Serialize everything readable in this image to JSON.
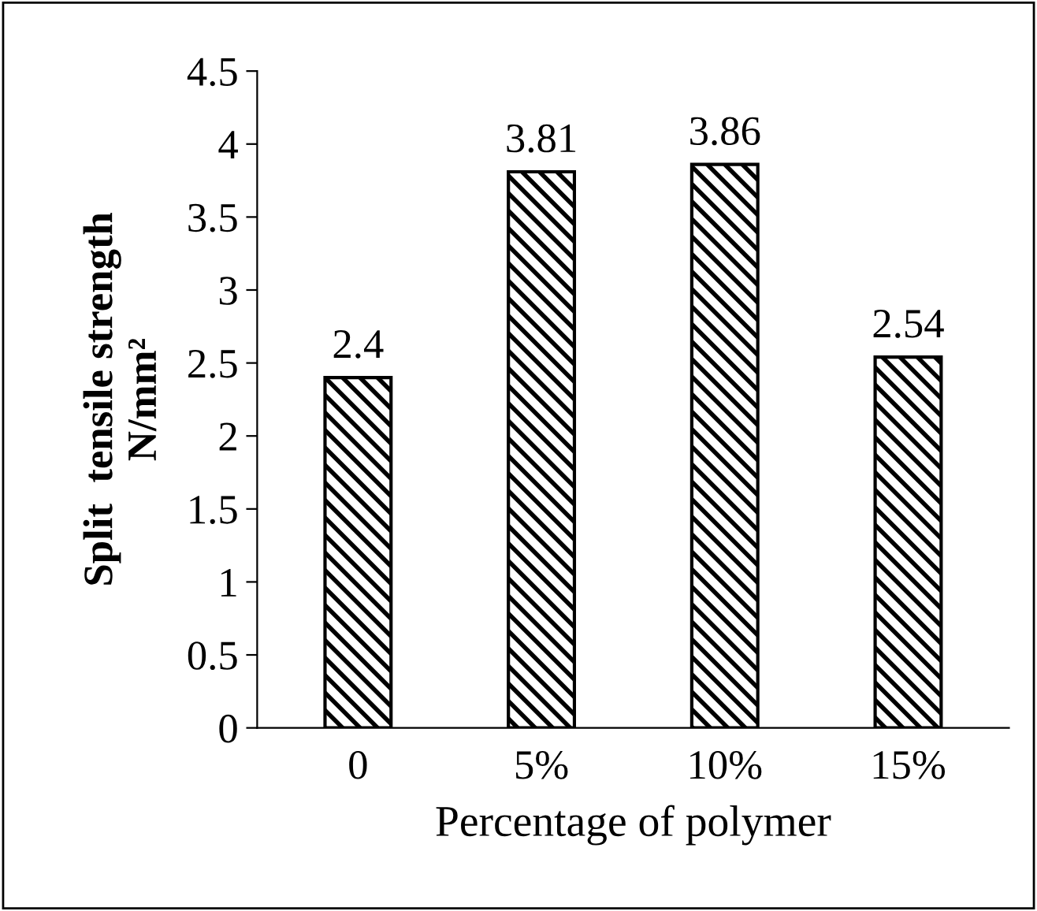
{
  "chart_data": {
    "type": "bar",
    "categories": [
      "0",
      "5%",
      "10%",
      "15%"
    ],
    "values": [
      2.4,
      3.81,
      3.86,
      2.54
    ],
    "color": "#000000",
    "data_labels": true,
    "xlabel": "Percentage of polymer",
    "ylabel": "Split  tensile strength\nN/mm²",
    "ylim": [
      0,
      4.5
    ],
    "yticks": [
      0,
      0.5,
      1,
      1.5,
      2,
      2.5,
      3,
      3.5,
      4,
      4.5
    ],
    "grid": false,
    "legend": false
  }
}
